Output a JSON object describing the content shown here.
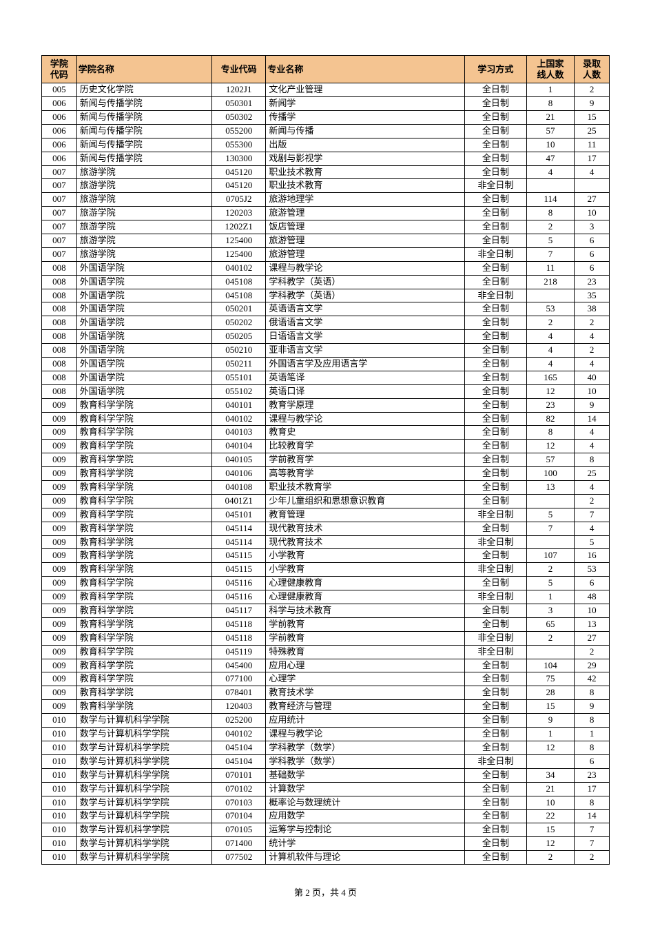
{
  "table": {
    "header_bg": "#f4c491",
    "border_color": "#000000",
    "columns": [
      {
        "key": "college_code",
        "label": "学院\n代码",
        "cls": "col-code"
      },
      {
        "key": "college_name",
        "label": "学院名称",
        "cls": "col-college"
      },
      {
        "key": "major_code",
        "label": "专业代码",
        "cls": "col-major-code"
      },
      {
        "key": "major_name",
        "label": "专业名称",
        "cls": "col-major-name"
      },
      {
        "key": "study_mode",
        "label": "学习方式",
        "cls": "col-mode"
      },
      {
        "key": "over_line",
        "label": "上国家\n线人数",
        "cls": "col-line"
      },
      {
        "key": "admit",
        "label": "录取\n人数",
        "cls": "col-admit"
      }
    ],
    "rows": [
      [
        "005",
        "历史文化学院",
        "1202J1",
        "文化产业管理",
        "全日制",
        "1",
        "2"
      ],
      [
        "006",
        "新闻与传播学院",
        "050301",
        "新闻学",
        "全日制",
        "8",
        "9"
      ],
      [
        "006",
        "新闻与传播学院",
        "050302",
        "传播学",
        "全日制",
        "21",
        "15"
      ],
      [
        "006",
        "新闻与传播学院",
        "055200",
        "新闻与传播",
        "全日制",
        "57",
        "25"
      ],
      [
        "006",
        "新闻与传播学院",
        "055300",
        "出版",
        "全日制",
        "10",
        "11"
      ],
      [
        "006",
        "新闻与传播学院",
        "130300",
        "戏剧与影视学",
        "全日制",
        "47",
        "17"
      ],
      [
        "007",
        "旅游学院",
        "045120",
        "职业技术教育",
        "全日制",
        "4",
        "4"
      ],
      [
        "007",
        "旅游学院",
        "045120",
        "职业技术教育",
        "非全日制",
        "",
        ""
      ],
      [
        "007",
        "旅游学院",
        "0705J2",
        "旅游地理学",
        "全日制",
        "114",
        "27"
      ],
      [
        "007",
        "旅游学院",
        "120203",
        "旅游管理",
        "全日制",
        "8",
        "10"
      ],
      [
        "007",
        "旅游学院",
        "1202Z1",
        "饭店管理",
        "全日制",
        "2",
        "3"
      ],
      [
        "007",
        "旅游学院",
        "125400",
        "旅游管理",
        "全日制",
        "5",
        "6"
      ],
      [
        "007",
        "旅游学院",
        "125400",
        "旅游管理",
        "非全日制",
        "7",
        "6"
      ],
      [
        "008",
        "外国语学院",
        "040102",
        "课程与教学论",
        "全日制",
        "11",
        "6"
      ],
      [
        "008",
        "外国语学院",
        "045108",
        "学科教学（英语）",
        "全日制",
        "218",
        "23"
      ],
      [
        "008",
        "外国语学院",
        "045108",
        "学科教学（英语）",
        "非全日制",
        "",
        "35"
      ],
      [
        "008",
        "外国语学院",
        "050201",
        "英语语言文学",
        "全日制",
        "53",
        "38"
      ],
      [
        "008",
        "外国语学院",
        "050202",
        "俄语语言文学",
        "全日制",
        "2",
        "2"
      ],
      [
        "008",
        "外国语学院",
        "050205",
        "日语语言文学",
        "全日制",
        "4",
        "4"
      ],
      [
        "008",
        "外国语学院",
        "050210",
        "亚非语言文学",
        "全日制",
        "4",
        "2"
      ],
      [
        "008",
        "外国语学院",
        "050211",
        "外国语言学及应用语言学",
        "全日制",
        "4",
        "4"
      ],
      [
        "008",
        "外国语学院",
        "055101",
        "英语笔译",
        "全日制",
        "165",
        "40"
      ],
      [
        "008",
        "外国语学院",
        "055102",
        "英语口译",
        "全日制",
        "12",
        "10"
      ],
      [
        "009",
        "教育科学学院",
        "040101",
        "教育学原理",
        "全日制",
        "23",
        "9"
      ],
      [
        "009",
        "教育科学学院",
        "040102",
        "课程与教学论",
        "全日制",
        "82",
        "14"
      ],
      [
        "009",
        "教育科学学院",
        "040103",
        "教育史",
        "全日制",
        "8",
        "4"
      ],
      [
        "009",
        "教育科学学院",
        "040104",
        "比较教育学",
        "全日制",
        "12",
        "4"
      ],
      [
        "009",
        "教育科学学院",
        "040105",
        "学前教育学",
        "全日制",
        "57",
        "8"
      ],
      [
        "009",
        "教育科学学院",
        "040106",
        "高等教育学",
        "全日制",
        "100",
        "25"
      ],
      [
        "009",
        "教育科学学院",
        "040108",
        "职业技术教育学",
        "全日制",
        "13",
        "4"
      ],
      [
        "009",
        "教育科学学院",
        "0401Z1",
        "少年儿童组织和思想意识教育",
        "全日制",
        "",
        "2"
      ],
      [
        "009",
        "教育科学学院",
        "045101",
        "教育管理",
        "非全日制",
        "5",
        "7"
      ],
      [
        "009",
        "教育科学学院",
        "045114",
        "现代教育技术",
        "全日制",
        "7",
        "4"
      ],
      [
        "009",
        "教育科学学院",
        "045114",
        "现代教育技术",
        "非全日制",
        "",
        "5"
      ],
      [
        "009",
        "教育科学学院",
        "045115",
        "小学教育",
        "全日制",
        "107",
        "16"
      ],
      [
        "009",
        "教育科学学院",
        "045115",
        "小学教育",
        "非全日制",
        "2",
        "53"
      ],
      [
        "009",
        "教育科学学院",
        "045116",
        "心理健康教育",
        "全日制",
        "5",
        "6"
      ],
      [
        "009",
        "教育科学学院",
        "045116",
        "心理健康教育",
        "非全日制",
        "1",
        "48"
      ],
      [
        "009",
        "教育科学学院",
        "045117",
        "科学与技术教育",
        "全日制",
        "3",
        "10"
      ],
      [
        "009",
        "教育科学学院",
        "045118",
        "学前教育",
        "全日制",
        "65",
        "13"
      ],
      [
        "009",
        "教育科学学院",
        "045118",
        "学前教育",
        "非全日制",
        "2",
        "27"
      ],
      [
        "009",
        "教育科学学院",
        "045119",
        "特殊教育",
        "非全日制",
        "",
        "2"
      ],
      [
        "009",
        "教育科学学院",
        "045400",
        "应用心理",
        "全日制",
        "104",
        "29"
      ],
      [
        "009",
        "教育科学学院",
        "077100",
        "心理学",
        "全日制",
        "75",
        "42"
      ],
      [
        "009",
        "教育科学学院",
        "078401",
        "教育技术学",
        "全日制",
        "28",
        "8"
      ],
      [
        "009",
        "教育科学学院",
        "120403",
        "教育经济与管理",
        "全日制",
        "15",
        "9"
      ],
      [
        "010",
        "数学与计算机科学学院",
        "025200",
        "应用统计",
        "全日制",
        "9",
        "8"
      ],
      [
        "010",
        "数学与计算机科学学院",
        "040102",
        "课程与教学论",
        "全日制",
        "1",
        "1"
      ],
      [
        "010",
        "数学与计算机科学学院",
        "045104",
        "学科教学（数学）",
        "全日制",
        "12",
        "8"
      ],
      [
        "010",
        "数学与计算机科学学院",
        "045104",
        "学科教学（数学）",
        "非全日制",
        "",
        "6"
      ],
      [
        "010",
        "数学与计算机科学学院",
        "070101",
        "基础数学",
        "全日制",
        "34",
        "23"
      ],
      [
        "010",
        "数学与计算机科学学院",
        "070102",
        "计算数学",
        "全日制",
        "21",
        "17"
      ],
      [
        "010",
        "数学与计算机科学学院",
        "070103",
        "概率论与数理统计",
        "全日制",
        "10",
        "8"
      ],
      [
        "010",
        "数学与计算机科学学院",
        "070104",
        "应用数学",
        "全日制",
        "22",
        "14"
      ],
      [
        "010",
        "数学与计算机科学学院",
        "070105",
        "运筹学与控制论",
        "全日制",
        "15",
        "7"
      ],
      [
        "010",
        "数学与计算机科学学院",
        "071400",
        "统计学",
        "全日制",
        "12",
        "7"
      ],
      [
        "010",
        "数学与计算机科学学院",
        "077502",
        "计算机软件与理论",
        "全日制",
        "2",
        "2"
      ]
    ]
  },
  "pager": {
    "text": "第 2 页，共 4 页"
  }
}
